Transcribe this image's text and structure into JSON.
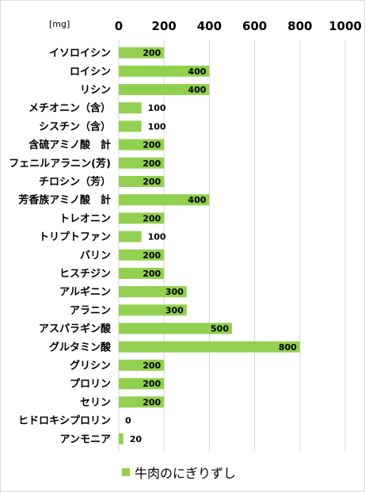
{
  "chart_data": {
    "type": "bar",
    "orientation": "horizontal",
    "unit_label": "[mg]",
    "xlim": [
      0,
      1000
    ],
    "xticks": [
      "0",
      "200",
      "400",
      "600",
      "800",
      "1000"
    ],
    "xtick_values": [
      0,
      200,
      400,
      600,
      800,
      1000
    ],
    "grid": true,
    "legend_position": "bottom",
    "bar_color": "#92d050",
    "categories": [
      "イソロイシン",
      "ロイシン",
      "リシン",
      "メチオニン（含）",
      "シスチン（含）",
      "含硫アミノ酸　計",
      "フェニルアラニン(芳)",
      "チロシン（芳）",
      "芳香族アミノ酸　計",
      "トレオニン",
      "トリプトファン",
      "バリン",
      "ヒスチジン",
      "アルギニン",
      "アラニン",
      "アスパラギン酸",
      "グルタミン酸",
      "グリシン",
      "プロリン",
      "セリン",
      "ヒドロキシプロリン",
      "アンモニア"
    ],
    "series": [
      {
        "name": "牛肉のにぎりずし",
        "values": [
          200,
          400,
          400,
          100,
          100,
          200,
          200,
          200,
          400,
          200,
          100,
          200,
          200,
          300,
          300,
          500,
          800,
          200,
          200,
          200,
          0,
          20
        ],
        "labels": [
          "200",
          "400",
          "400",
          "100",
          "100",
          "200",
          "200",
          "200",
          "400",
          "200",
          "100",
          "200",
          "200",
          "300",
          "300",
          "500",
          "800",
          "200",
          "200",
          "200",
          "0",
          "20"
        ]
      }
    ]
  }
}
